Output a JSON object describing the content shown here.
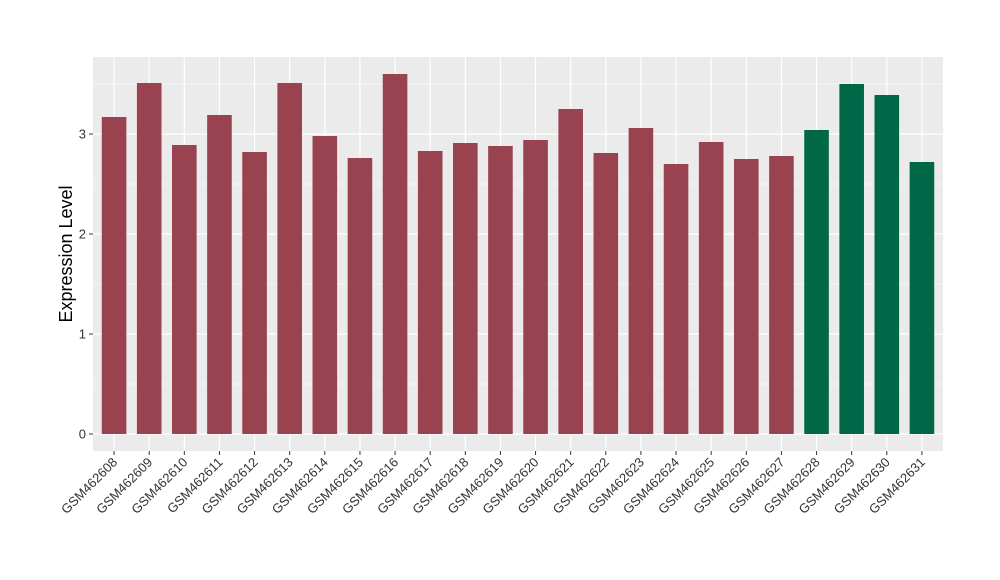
{
  "chart_data": {
    "type": "bar",
    "ylabel": "Expression Level",
    "xlabel": "",
    "ylim": [
      -0.17,
      3.77
    ],
    "yticks": [
      0,
      1,
      2,
      3
    ],
    "grid": true,
    "categories": [
      "GSM462608",
      "GSM462609",
      "GSM462610",
      "GSM462611",
      "GSM462612",
      "GSM462613",
      "GSM462614",
      "GSM462615",
      "GSM462616",
      "GSM462617",
      "GSM462618",
      "GSM462619",
      "GSM462620",
      "GSM462621",
      "GSM462622",
      "GSM462623",
      "GSM462624",
      "GSM462625",
      "GSM462626",
      "GSM462627",
      "GSM462628",
      "GSM462629",
      "GSM462630",
      "GSM462631"
    ],
    "values": [
      3.17,
      3.51,
      2.89,
      3.19,
      2.82,
      3.51,
      2.98,
      2.76,
      3.6,
      2.83,
      2.91,
      2.88,
      2.94,
      3.25,
      2.81,
      3.06,
      2.7,
      2.92,
      2.75,
      2.78,
      3.04,
      3.5,
      3.39,
      2.72
    ],
    "groups": [
      "a",
      "a",
      "a",
      "a",
      "a",
      "a",
      "a",
      "a",
      "a",
      "a",
      "a",
      "a",
      "a",
      "a",
      "a",
      "a",
      "a",
      "a",
      "a",
      "a",
      "b",
      "b",
      "b",
      "b"
    ],
    "colors": {
      "a": "#994250",
      "b": "#006847"
    },
    "panel_background": "#ebebeb",
    "grid_color": "#ffffff"
  }
}
